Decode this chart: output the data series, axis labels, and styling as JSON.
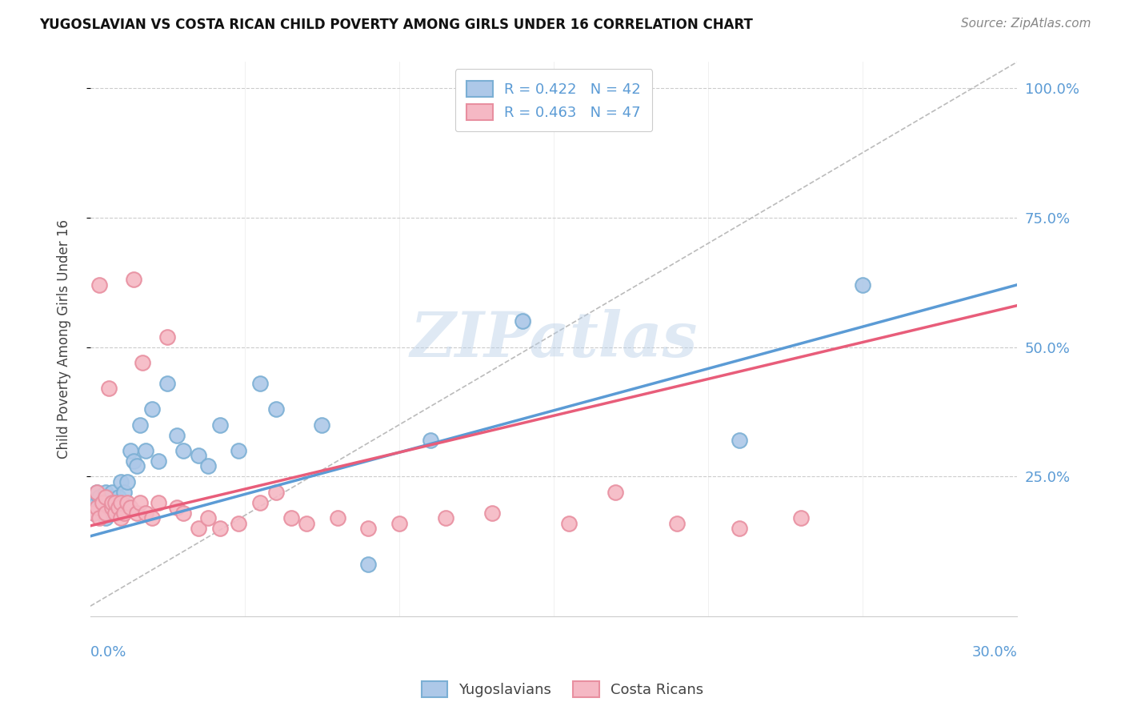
{
  "title": "YUGOSLAVIAN VS COSTA RICAN CHILD POVERTY AMONG GIRLS UNDER 16 CORRELATION CHART",
  "source": "Source: ZipAtlas.com",
  "ylabel": "Child Poverty Among Girls Under 16",
  "ytick_labels_right": [
    "25.0%",
    "50.0%",
    "75.0%",
    "100.0%"
  ],
  "ytick_values": [
    0.25,
    0.5,
    0.75,
    1.0
  ],
  "xlim": [
    0.0,
    0.3
  ],
  "ylim": [
    -0.02,
    1.05
  ],
  "grid_color": "#cccccc",
  "background_color": "#ffffff",
  "yugo_line_color": "#5b9bd5",
  "yugo_fill": "#adc8e8",
  "yugo_edge": "#7bafd4",
  "costa_line_color": "#e85d7a",
  "costa_fill": "#f5b8c4",
  "costa_edge": "#e88fa0",
  "diag_color": "#bbbbbb",
  "yugo_R": 0.422,
  "yugo_N": 42,
  "costa_R": 0.463,
  "costa_N": 47,
  "legend_label_yugo": "Yugoslavians",
  "legend_label_costa": "Costa Ricans",
  "watermark": "ZIPatlas",
  "title_fontsize": 12,
  "source_fontsize": 11,
  "tick_fontsize": 13,
  "legend_fontsize": 13,
  "yugo_x": [
    0.001,
    0.002,
    0.002,
    0.003,
    0.003,
    0.004,
    0.004,
    0.005,
    0.005,
    0.006,
    0.006,
    0.007,
    0.007,
    0.008,
    0.008,
    0.009,
    0.01,
    0.01,
    0.011,
    0.012,
    0.013,
    0.014,
    0.015,
    0.016,
    0.018,
    0.02,
    0.022,
    0.025,
    0.028,
    0.03,
    0.035,
    0.038,
    0.042,
    0.048,
    0.055,
    0.06,
    0.075,
    0.09,
    0.11,
    0.14,
    0.21,
    0.25
  ],
  "yugo_y": [
    0.18,
    0.2,
    0.22,
    0.19,
    0.21,
    0.18,
    0.2,
    0.17,
    0.22,
    0.19,
    0.21,
    0.2,
    0.22,
    0.19,
    0.18,
    0.21,
    0.2,
    0.24,
    0.22,
    0.24,
    0.3,
    0.28,
    0.27,
    0.35,
    0.3,
    0.38,
    0.28,
    0.43,
    0.33,
    0.3,
    0.29,
    0.27,
    0.35,
    0.3,
    0.43,
    0.38,
    0.35,
    0.08,
    0.32,
    0.55,
    0.32,
    0.62
  ],
  "costa_x": [
    0.001,
    0.002,
    0.002,
    0.003,
    0.003,
    0.004,
    0.005,
    0.005,
    0.006,
    0.007,
    0.007,
    0.008,
    0.008,
    0.009,
    0.01,
    0.01,
    0.011,
    0.012,
    0.013,
    0.014,
    0.015,
    0.016,
    0.017,
    0.018,
    0.02,
    0.022,
    0.025,
    0.028,
    0.03,
    0.035,
    0.038,
    0.042,
    0.048,
    0.055,
    0.06,
    0.065,
    0.07,
    0.08,
    0.09,
    0.1,
    0.115,
    0.13,
    0.155,
    0.17,
    0.19,
    0.21,
    0.23
  ],
  "costa_y": [
    0.18,
    0.19,
    0.22,
    0.62,
    0.17,
    0.2,
    0.18,
    0.21,
    0.42,
    0.19,
    0.2,
    0.18,
    0.2,
    0.19,
    0.17,
    0.2,
    0.18,
    0.2,
    0.19,
    0.63,
    0.18,
    0.2,
    0.47,
    0.18,
    0.17,
    0.2,
    0.52,
    0.19,
    0.18,
    0.15,
    0.17,
    0.15,
    0.16,
    0.2,
    0.22,
    0.17,
    0.16,
    0.17,
    0.15,
    0.16,
    0.17,
    0.18,
    0.16,
    0.22,
    0.16,
    0.15,
    0.17
  ]
}
